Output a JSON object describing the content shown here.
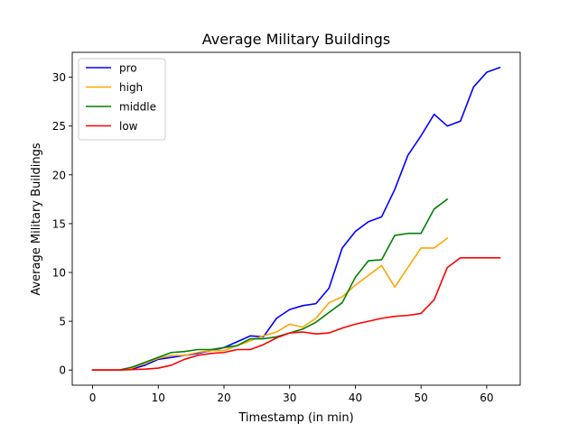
{
  "chart_data": {
    "type": "line",
    "title": "Average Military Buildings",
    "xlabel": "Timestamp (in min)",
    "ylabel": "Average Military Buildings",
    "xlim": [
      -3.1,
      65.1
    ],
    "ylim": [
      -1.55,
      32.55
    ],
    "xticks": [
      0,
      10,
      20,
      30,
      40,
      50,
      60
    ],
    "yticks": [
      0,
      5,
      10,
      15,
      20,
      25,
      30
    ],
    "grid": false,
    "legend_position": "top-left",
    "series": [
      {
        "name": "pro",
        "color": "#0000ff",
        "x": [
          0,
          2,
          4,
          6,
          8,
          10,
          12,
          14,
          16,
          18,
          20,
          22,
          24,
          26,
          28,
          30,
          32,
          34,
          36,
          38,
          40,
          42,
          44,
          46,
          48,
          50,
          52,
          54,
          56,
          58,
          60,
          62
        ],
        "values": [
          0,
          0,
          0,
          0.1,
          0.5,
          1.1,
          1.3,
          1.5,
          1.7,
          2.0,
          2.3,
          2.9,
          3.5,
          3.4,
          5.3,
          6.2,
          6.6,
          6.8,
          8.4,
          12.5,
          14.2,
          15.2,
          15.7,
          18.5,
          22.0,
          24.0,
          26.2,
          25.0,
          25.5,
          29.0,
          30.5,
          31.0
        ]
      },
      {
        "name": "high",
        "color": "#ffa500",
        "x": [
          0,
          2,
          4,
          6,
          8,
          10,
          12,
          14,
          16,
          18,
          20,
          22,
          24,
          26,
          28,
          30,
          32,
          34,
          36,
          38,
          40,
          42,
          44,
          46,
          48,
          50,
          52,
          54
        ],
        "values": [
          0,
          0,
          0,
          0.2,
          0.7,
          1.2,
          1.5,
          1.5,
          1.8,
          2.0,
          2.0,
          2.5,
          3.0,
          3.5,
          3.9,
          4.7,
          4.4,
          5.3,
          6.9,
          7.5,
          8.7,
          9.7,
          10.7,
          8.5,
          10.5,
          12.5,
          12.5,
          13.5
        ]
      },
      {
        "name": "middle",
        "color": "#008000",
        "x": [
          0,
          2,
          4,
          6,
          8,
          10,
          12,
          14,
          16,
          18,
          20,
          22,
          24,
          26,
          28,
          30,
          32,
          34,
          36,
          38,
          40,
          42,
          44,
          46,
          48,
          50,
          52,
          54
        ],
        "values": [
          0,
          0,
          0,
          0.3,
          0.8,
          1.3,
          1.8,
          1.9,
          2.1,
          2.1,
          2.3,
          2.5,
          3.2,
          3.2,
          3.4,
          3.8,
          4.2,
          4.9,
          5.9,
          6.9,
          9.5,
          11.2,
          11.3,
          13.8,
          14.0,
          14.0,
          16.5,
          17.5
        ]
      },
      {
        "name": "low",
        "color": "#ff0000",
        "x": [
          0,
          2,
          4,
          6,
          8,
          10,
          12,
          14,
          16,
          18,
          20,
          22,
          24,
          26,
          28,
          30,
          32,
          34,
          36,
          38,
          40,
          42,
          44,
          46,
          48,
          50,
          52,
          54,
          56,
          58,
          60,
          62
        ],
        "values": [
          0,
          0,
          0,
          0.05,
          0.1,
          0.2,
          0.5,
          1.1,
          1.5,
          1.7,
          1.8,
          2.1,
          2.1,
          2.6,
          3.3,
          3.8,
          3.9,
          3.7,
          3.8,
          4.3,
          4.7,
          5.0,
          5.3,
          5.5,
          5.6,
          5.8,
          7.2,
          10.5,
          11.5,
          11.5,
          11.5,
          11.5
        ]
      }
    ]
  }
}
